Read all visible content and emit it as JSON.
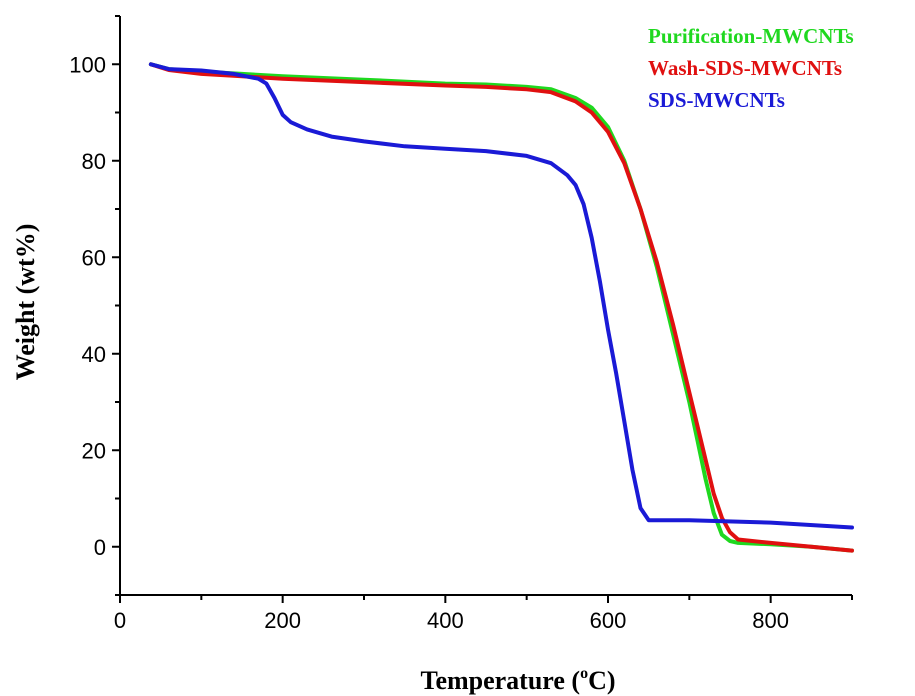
{
  "chart_data": {
    "type": "line",
    "title": "",
    "xlabel": "Temperature (",
    "xlabel_unit_sup": "o",
    "xlabel_unit_tail": "C)",
    "ylabel": "Weight (wt%)",
    "xlim": [
      0,
      900
    ],
    "ylim": [
      -10,
      110
    ],
    "xticks": [
      0,
      200,
      400,
      600,
      800
    ],
    "yticks": [
      0,
      20,
      40,
      60,
      80,
      100
    ],
    "grid": false,
    "legend_position": "top-right",
    "series": [
      {
        "name": "Purification-MWCNTs",
        "color": "#1fd81f",
        "x": [
          38,
          60,
          100,
          150,
          200,
          300,
          400,
          450,
          500,
          530,
          560,
          580,
          600,
          620,
          640,
          660,
          680,
          700,
          710,
          720,
          730,
          740,
          750,
          760,
          800,
          850,
          900
        ],
        "y": [
          100,
          99,
          98.5,
          98,
          97.5,
          96.8,
          96,
          95.8,
          95.3,
          94.8,
          93,
          91,
          87,
          80,
          70,
          58,
          44,
          30,
          22,
          14,
          7,
          2.5,
          1.2,
          0.8,
          0.5,
          0,
          -0.8
        ]
      },
      {
        "name": "Wash-SDS-MWCNTs",
        "color": "#e01010",
        "x": [
          38,
          60,
          100,
          150,
          200,
          300,
          400,
          450,
          500,
          530,
          560,
          580,
          600,
          620,
          640,
          660,
          680,
          700,
          710,
          720,
          730,
          740,
          750,
          760,
          800,
          850,
          900
        ],
        "y": [
          100,
          98.8,
          98,
          97.5,
          97,
          96.3,
          95.6,
          95.3,
          94.8,
          94.2,
          92.3,
          90,
          86,
          79.5,
          70,
          59,
          46,
          32,
          25,
          18,
          11,
          6,
          3,
          1.5,
          0.8,
          0,
          -0.8
        ]
      },
      {
        "name": "SDS-MWCNTs",
        "color": "#1a1ad6",
        "x": [
          38,
          60,
          100,
          140,
          170,
          180,
          190,
          200,
          210,
          230,
          260,
          300,
          350,
          400,
          450,
          500,
          530,
          550,
          560,
          570,
          580,
          590,
          600,
          610,
          620,
          630,
          640,
          650,
          660,
          700,
          800,
          900
        ],
        "y": [
          100,
          99,
          98.7,
          98,
          97,
          96,
          93,
          89.5,
          88,
          86.5,
          85,
          84,
          83,
          82.5,
          82,
          81,
          79.5,
          77,
          75,
          71,
          64,
          55,
          45,
          36,
          26,
          16,
          8,
          5.5,
          5.5,
          5.5,
          5,
          4
        ]
      }
    ]
  }
}
